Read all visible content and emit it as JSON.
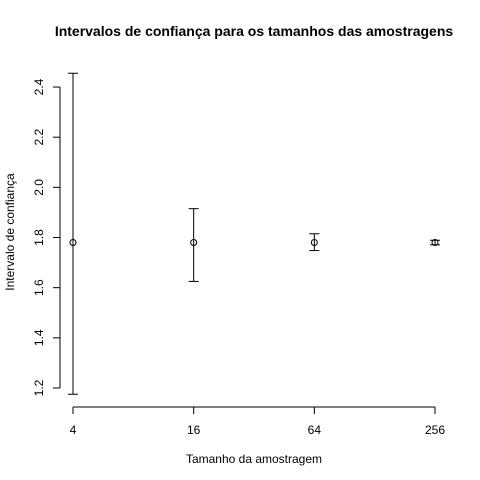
{
  "chart_data": {
    "type": "scatter",
    "title": "Intervalos de confiança para os tamanhos das amostragens",
    "xlabel": "Tamanho da amostragem",
    "ylabel": "Intervalo de confiança",
    "x_scale": "log2",
    "x_ticks": [
      "4",
      "16",
      "64",
      "256"
    ],
    "y_ticks": [
      "1.2",
      "1.4",
      "1.6",
      "1.8",
      "2.0",
      "2.2",
      "2.4"
    ],
    "ylim": [
      1.18,
      2.46
    ],
    "grid": false,
    "legend": "none",
    "points": [
      {
        "x": 4,
        "y": 1.78,
        "lower": 1.175,
        "upper": 2.455
      },
      {
        "x": 16,
        "y": 1.78,
        "lower": 1.625,
        "upper": 1.915
      },
      {
        "x": 64,
        "y": 1.78,
        "lower": 1.748,
        "upper": 1.815
      },
      {
        "x": 256,
        "y": 1.78,
        "lower": 1.771,
        "upper": 1.789
      }
    ]
  }
}
